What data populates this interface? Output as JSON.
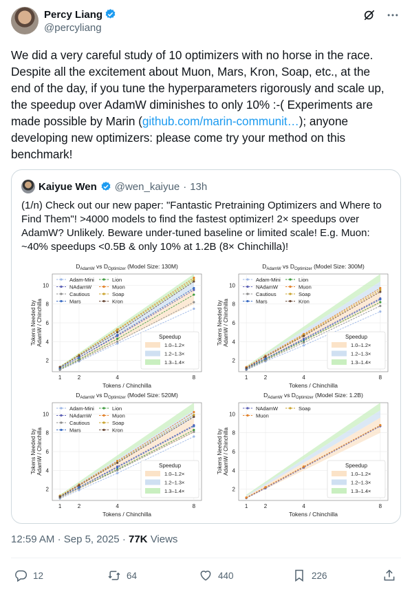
{
  "author": {
    "name": "Percy Liang",
    "handle": "@percyliang"
  },
  "tweet": {
    "line1": "We did a very careful study of 10 optimizers with no horse in the race.",
    "line2": "Despite all the excitement about Muon, Mars, Kron, Soap, etc., at the",
    "line3": "end of the day, if you tune the hyperparameters rigorously and scale up,",
    "line4": "the speedup over AdamW diminishes to only 10% :-(  Experiments are",
    "line5_pre": "made possible by Marin (",
    "link": "github.com/marin-communit…",
    "line5_post": "); anyone",
    "line6": "developing new optimizers: please come try your method on this",
    "line7": "benchmark!"
  },
  "quote": {
    "name": "Kaiyue Wen",
    "handle": "@wen_kaiyue",
    "sep": "·",
    "time": "13h",
    "l1": "(1/n) Check out our new paper: \"Fantastic Pretraining Optimizers and Where to",
    "l2": "Find Them\"! >4000 models to find the fastest optimizer! 2× speedups over",
    "l3": "AdamW? Unlikely. Beware under-tuned baseline or limited scale! E.g. Muon:",
    "l4": "~40% speedups <0.5B & only 10% at 1.2B (8× Chinchilla)!"
  },
  "chart_data": [
    {
      "type": "line",
      "title": "D_AdamW vs D_Optimizer (Model Size: 130M)",
      "xlabel": "Tokens / Chinchilla",
      "ylabel": "Tokens Needed by AdamW / Chinchilla",
      "x": [
        1,
        2,
        4,
        8
      ],
      "xticks": [
        1,
        2,
        4,
        8
      ],
      "yticks": [
        2,
        4,
        6,
        8,
        10
      ],
      "ylim": [
        0.8,
        11.2
      ],
      "series": [
        {
          "name": "Adam-Mini",
          "values": [
            1.0,
            1.9,
            3.8,
            7.5
          ]
        },
        {
          "name": "Lion",
          "values": [
            1.1,
            2.1,
            4.3,
            9.0
          ]
        },
        {
          "name": "NAdamW",
          "values": [
            1.2,
            2.3,
            4.6,
            9.5
          ]
        },
        {
          "name": "Muon",
          "values": [
            1.3,
            2.6,
            5.3,
            10.8
          ]
        },
        {
          "name": "Cautious",
          "values": [
            1.0,
            2.0,
            4.0,
            8.2
          ]
        },
        {
          "name": "Soap",
          "values": [
            1.3,
            2.6,
            5.2,
            10.6
          ]
        },
        {
          "name": "Mars",
          "values": [
            1.2,
            2.3,
            4.7,
            9.7
          ]
        },
        {
          "name": "Kron",
          "values": [
            1.3,
            2.5,
            5.0,
            10.4
          ]
        }
      ],
      "speedup_title": "Speedup",
      "speedup_bands": [
        "1.0–1.2×",
        "1.2–1.3×",
        "1.3–1.4×"
      ]
    },
    {
      "type": "line",
      "title": "D_AdamW vs D_Optimizer (Model Size: 300M)",
      "xlabel": "Tokens / Chinchilla",
      "ylabel": "Tokens Needed by AdamW / Chinchilla",
      "x": [
        1,
        2,
        4,
        8
      ],
      "xticks": [
        1,
        2,
        4,
        8
      ],
      "yticks": [
        2,
        4,
        6,
        8,
        10
      ],
      "ylim": [
        0.8,
        11.2
      ],
      "series": [
        {
          "name": "Adam-Mini",
          "values": [
            1.0,
            1.9,
            3.6,
            7.2
          ]
        },
        {
          "name": "Lion",
          "values": [
            1.1,
            2.1,
            4.1,
            8.2
          ]
        },
        {
          "name": "NAdamW",
          "values": [
            1.2,
            2.2,
            4.3,
            8.6
          ]
        },
        {
          "name": "Muon",
          "values": [
            1.3,
            2.5,
            4.8,
            9.7
          ]
        },
        {
          "name": "Cautious",
          "values": [
            1.0,
            2.0,
            3.9,
            7.8
          ]
        },
        {
          "name": "Soap",
          "values": [
            1.2,
            2.4,
            4.7,
            9.5
          ]
        },
        {
          "name": "Mars",
          "values": [
            1.1,
            2.2,
            4.2,
            8.5
          ]
        },
        {
          "name": "Kron",
          "values": [
            1.2,
            2.4,
            4.6,
            9.3
          ]
        }
      ],
      "speedup_title": "Speedup",
      "speedup_bands": [
        "1.0–1.2×",
        "1.2–1.3×",
        "1.3–1.4×"
      ]
    },
    {
      "type": "line",
      "title": "D_AdamW vs D_Optimizer (Model Size: 520M)",
      "xlabel": "Tokens / Chinchilla",
      "ylabel": "Tokens Needed by AdamW / Chinchilla",
      "x": [
        1,
        2,
        4,
        8
      ],
      "xticks": [
        1,
        2,
        4,
        8
      ],
      "yticks": [
        2,
        4,
        6,
        8,
        10
      ],
      "ylim": [
        0.8,
        11.2
      ],
      "series": [
        {
          "name": "Adam-Mini",
          "values": [
            1.0,
            1.9,
            3.7,
            7.6
          ]
        },
        {
          "name": "Lion",
          "values": [
            1.1,
            2.1,
            4.1,
            8.3
          ]
        },
        {
          "name": "NAdamW",
          "values": [
            1.2,
            2.2,
            4.4,
            8.8
          ]
        },
        {
          "name": "Muon",
          "values": [
            1.3,
            2.5,
            5.0,
            10.2
          ]
        },
        {
          "name": "Cautious",
          "values": [
            1.1,
            2.1,
            4.0,
            8.1
          ]
        },
        {
          "name": "Soap",
          "values": [
            1.3,
            2.4,
            4.9,
            9.9
          ]
        },
        {
          "name": "Mars",
          "values": [
            1.2,
            2.2,
            4.3,
            8.7
          ]
        },
        {
          "name": "Kron",
          "values": [
            1.2,
            2.4,
            4.8,
            9.7
          ]
        }
      ],
      "speedup_title": "Speedup",
      "speedup_bands": [
        "1.0–1.2×",
        "1.2–1.3×",
        "1.3–1.4×"
      ]
    },
    {
      "type": "line",
      "title": "D_AdamW vs D_Optimizer (Model Size: 1.2B)",
      "xlabel": "Tokens / Chinchilla",
      "ylabel": "Tokens Needed by AdamW / Chinchilla",
      "x": [
        1,
        2,
        4,
        8
      ],
      "xticks": [
        1,
        2,
        4,
        8
      ],
      "yticks": [
        2,
        4,
        6,
        8,
        10
      ],
      "ylim": [
        0.8,
        11.2
      ],
      "series": [
        {
          "name": "NAdamW",
          "values": [
            1.05,
            2.1,
            4.3,
            8.7
          ]
        },
        {
          "name": "Soap",
          "values": [
            1.1,
            2.2,
            4.4,
            8.8
          ]
        },
        {
          "name": "Muon",
          "values": [
            1.1,
            2.2,
            4.4,
            8.8
          ]
        }
      ],
      "speedup_title": "Speedup",
      "speedup_bands": [
        "1.0–1.2×",
        "1.2–1.3×",
        "1.3–1.4×"
      ]
    }
  ],
  "colors": {
    "Adam-Mini": "#9db7e6",
    "Lion": "#3d9a3d",
    "NAdamW": "#5b5fb5",
    "Muon": "#e3822a",
    "Cautious": "#8c8c8c",
    "Soap": "#c9a22a",
    "Mars": "#3a6cc4",
    "Kron": "#6a4b3a",
    "band1": "#fbe3c8",
    "band2": "#cfe0f2",
    "band3": "#c9efc0",
    "link": "#1d9bf0",
    "muted": "#536471"
  },
  "meta": {
    "time": "12:59 AM",
    "date": "Sep 5, 2025",
    "views_count": "77K",
    "views_label": "Views",
    "sep": "·"
  },
  "actions": {
    "replies": "12",
    "reposts": "64",
    "likes": "440",
    "bookmarks": "226"
  },
  "icons": {
    "grok": "grok-icon",
    "more": "more-icon",
    "reply": "reply-icon",
    "repost": "repost-icon",
    "like": "like-icon",
    "bookmark": "bookmark-icon",
    "share": "share-icon",
    "verified": "verified-icon"
  }
}
